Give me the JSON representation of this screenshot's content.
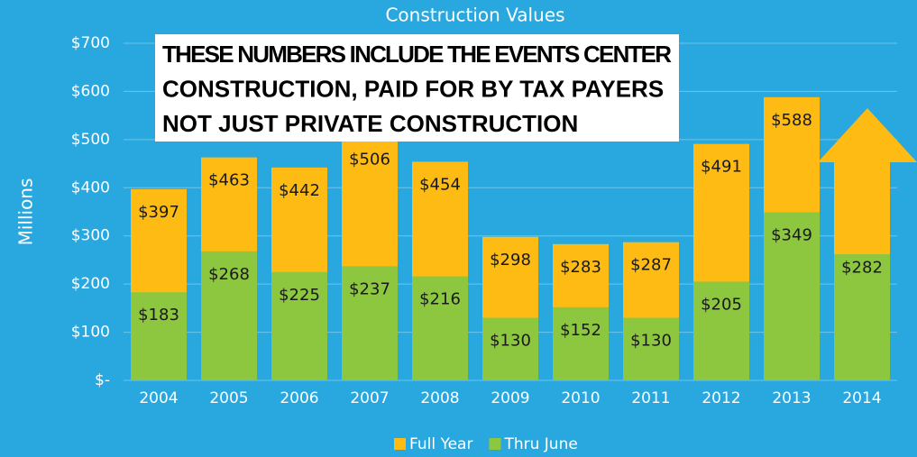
{
  "chart_data": {
    "type": "bar",
    "title": "Construction Values",
    "y_label": "Millions",
    "categories": [
      "2004",
      "2005",
      "2006",
      "2007",
      "2008",
      "2009",
      "2010",
      "2011",
      "2012",
      "2013",
      "2014"
    ],
    "series": [
      {
        "name": "Full Year",
        "color": "#fdbb14",
        "values": [
          397,
          463,
          442,
          506,
          454,
          298,
          283,
          287,
          491,
          588,
          null
        ],
        "value_labels": [
          "$397",
          "$463",
          "$442",
          "$506",
          "$454",
          "$298",
          "$283",
          "$287",
          "$491",
          "$588",
          null
        ]
      },
      {
        "name": "Thru June",
        "color": "#8dc63f",
        "values": [
          183,
          268,
          225,
          237,
          216,
          130,
          152,
          130,
          205,
          349,
          282
        ],
        "value_labels": [
          "$183",
          "$268",
          "$225",
          "$237",
          "$216",
          "$130",
          "$152",
          "$130",
          "$205",
          "$349",
          "$282"
        ]
      }
    ],
    "ylim": [
      0,
      700
    ],
    "yticks": [
      {
        "value": 0,
        "label": "$-"
      },
      {
        "value": 100,
        "label": "$100"
      },
      {
        "value": 200,
        "label": "$200"
      },
      {
        "value": 300,
        "label": "$300"
      },
      {
        "value": 400,
        "label": "$400"
      },
      {
        "value": 500,
        "label": "$500"
      },
      {
        "value": 600,
        "label": "$600"
      },
      {
        "value": 700,
        "label": "$700"
      }
    ],
    "grid": true,
    "legend": "bottom",
    "annotation": [
      "THESE NUMBERS INCLUDE THE EVENTS CENTER",
      "CONSTRUCTION, PAID FOR BY TAX PAYERS",
      "NOT JUST PRIVATE CONSTRUCTION"
    ]
  }
}
